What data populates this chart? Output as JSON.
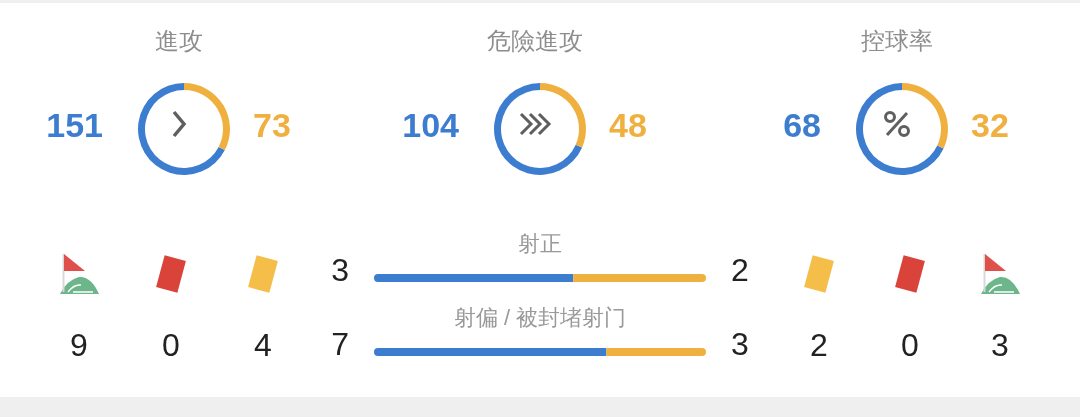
{
  "chart_data": [
    {
      "type": "donut",
      "title": "進攻",
      "categories": [
        null,
        null
      ],
      "values": [
        151,
        73
      ],
      "colors": [
        "#3d7dd0",
        "#f0b040"
      ],
      "data_labels": true
    },
    {
      "type": "donut",
      "title": "危險進攻",
      "categories": [
        null,
        null
      ],
      "values": [
        104,
        48
      ],
      "colors": [
        "#3d7dd0",
        "#f0b040"
      ],
      "data_labels": true
    },
    {
      "type": "donut",
      "title": "控球率",
      "categories": [
        null,
        null
      ],
      "values": [
        68,
        32
      ],
      "colors": [
        "#3d7dd0",
        "#f0b040"
      ],
      "data_labels": true
    },
    {
      "type": "bar",
      "orientation": "horizontal",
      "stacked": true,
      "categories": [
        "射正"
      ],
      "series": [
        {
          "color": "#3d7dd0",
          "values": [
            3
          ]
        },
        {
          "color": "#f0b040",
          "values": [
            2
          ]
        }
      ],
      "data_labels": true
    },
    {
      "type": "bar",
      "orientation": "horizontal",
      "stacked": true,
      "categories": [
        "射偏 / 被封堵射门"
      ],
      "series": [
        {
          "color": "#3d7dd0",
          "values": [
            7
          ]
        },
        {
          "color": "#f0b040",
          "values": [
            3
          ]
        }
      ],
      "data_labels": true
    },
    {
      "type": "other",
      "categories": [
        null,
        null,
        null,
        null,
        null,
        null
      ],
      "values": [
        9,
        0,
        4,
        2,
        0,
        3
      ],
      "data_labels": true
    }
  ]
}
